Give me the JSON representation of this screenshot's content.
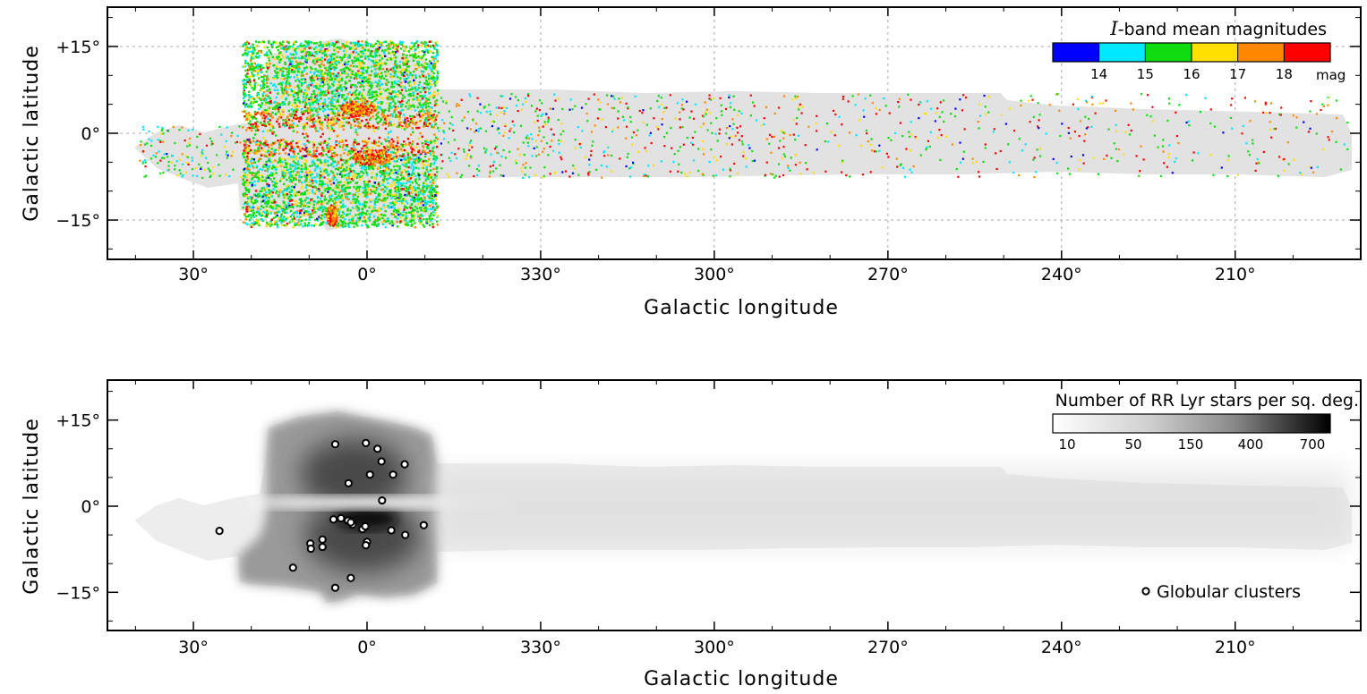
{
  "chart_data": [
    {
      "type": "heatmap",
      "panel": "top",
      "xlabel": "Galactic longitude",
      "ylabel": "Galactic latitude",
      "x_ticks": [
        {
          "value": 30,
          "label": "30°"
        },
        {
          "value": 0,
          "label": "0°"
        },
        {
          "value": -30,
          "label": "330°"
        },
        {
          "value": -60,
          "label": "300°"
        },
        {
          "value": -90,
          "label": "270°"
        },
        {
          "value": -120,
          "label": "240°"
        },
        {
          "value": -150,
          "label": "210°"
        }
      ],
      "y_ticks": [
        {
          "value": 15,
          "label": "+15°"
        },
        {
          "value": 0,
          "label": "0°"
        },
        {
          "value": -15,
          "label": "−15°"
        }
      ],
      "xlim": [
        46,
        -170
      ],
      "ylim": [
        -22,
        22
      ],
      "grid": true,
      "colorbar": {
        "title_italic": "I",
        "title_rest": "-band mean magnitudes",
        "colors": [
          "#0000ff",
          "#00e8ff",
          "#10dd10",
          "#ffe000",
          "#ff8800",
          "#ff0000"
        ],
        "tick_labels": [
          "14",
          "15",
          "16",
          "17",
          "18"
        ],
        "unit": "mag",
        "placement": "top-right"
      }
    },
    {
      "type": "heatmap",
      "panel": "bottom",
      "xlabel": "Galactic longitude",
      "ylabel": "Galactic latitude",
      "x_ticks": [
        {
          "value": 30,
          "label": "30°"
        },
        {
          "value": 0,
          "label": "0°"
        },
        {
          "value": -30,
          "label": "330°"
        },
        {
          "value": -60,
          "label": "300°"
        },
        {
          "value": -90,
          "label": "270°"
        },
        {
          "value": -120,
          "label": "240°"
        },
        {
          "value": -150,
          "label": "210°"
        }
      ],
      "y_ticks": [
        {
          "value": 15,
          "label": "+15°"
        },
        {
          "value": 0,
          "label": "0°"
        },
        {
          "value": -15,
          "label": "−15°"
        }
      ],
      "xlim": [
        46,
        -170
      ],
      "ylim": [
        -22,
        22
      ],
      "grid": false,
      "colorbar": {
        "title": "Number of RR Lyr stars per sq. deg.",
        "tick_labels": [
          "10",
          "50",
          "150",
          "400",
          "700"
        ],
        "placement": "top-right"
      },
      "legend": {
        "label": "Globular clusters",
        "placement": "bottom-right"
      },
      "globular_clusters": [
        {
          "l": 5.5,
          "b": 10.8
        },
        {
          "l": 0.2,
          "b": 11.0
        },
        {
          "l": -1.8,
          "b": 10.0
        },
        {
          "l": -2.5,
          "b": 7.8
        },
        {
          "l": -6.5,
          "b": 7.3
        },
        {
          "l": -0.5,
          "b": 5.5
        },
        {
          "l": -4.5,
          "b": 5.5
        },
        {
          "l": 3.2,
          "b": 4.0
        },
        {
          "l": -2.6,
          "b": 1.0
        },
        {
          "l": 5.8,
          "b": -2.3
        },
        {
          "l": 4.5,
          "b": -2.1
        },
        {
          "l": 3.3,
          "b": -2.5
        },
        {
          "l": 2.5,
          "b": -3.2
        },
        {
          "l": 2.8,
          "b": -2.8
        },
        {
          "l": 0.8,
          "b": -4.0
        },
        {
          "l": 0.3,
          "b": -3.5
        },
        {
          "l": -4.2,
          "b": -4.2
        },
        {
          "l": -9.8,
          "b": -3.3
        },
        {
          "l": -6.6,
          "b": -5.0
        },
        {
          "l": 7.7,
          "b": -5.8
        },
        {
          "l": 9.8,
          "b": -6.5
        },
        {
          "l": 9.7,
          "b": -7.4
        },
        {
          "l": 7.7,
          "b": -7.1
        },
        {
          "l": 0.0,
          "b": -6.2
        },
        {
          "l": 0.2,
          "b": -6.8
        },
        {
          "l": 25.5,
          "b": -4.3
        },
        {
          "l": 12.8,
          "b": -10.7
        },
        {
          "l": 2.8,
          "b": -12.5
        },
        {
          "l": 5.5,
          "b": -14.2
        }
      ]
    }
  ]
}
